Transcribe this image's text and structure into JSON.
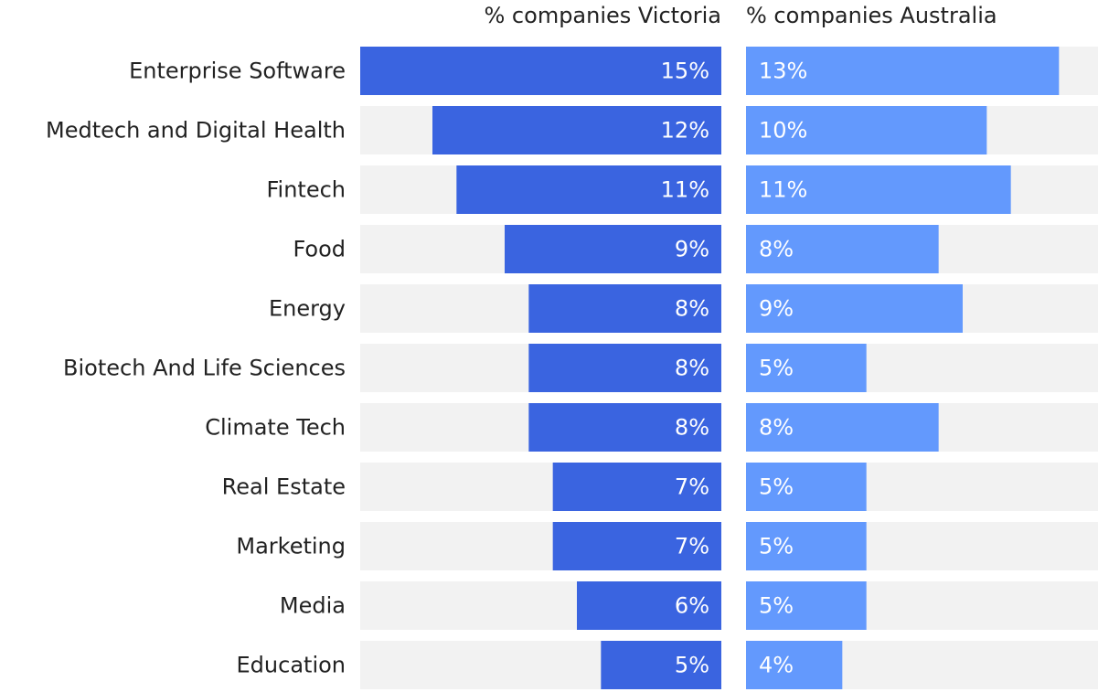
{
  "chart_data": {
    "type": "mirrored-bar",
    "categories": [
      "Enterprise Software",
      "Medtech and Digital Health",
      "Fintech",
      "Food",
      "Energy",
      "Biotech And Life Sciences",
      "Climate Tech",
      "Real Estate",
      "Marketing",
      "Media",
      "Education"
    ],
    "series": [
      {
        "name": "% companies Victoria",
        "color": "#3a64e0",
        "values": [
          15,
          12,
          11,
          9,
          8,
          8,
          8,
          7,
          7,
          6,
          5
        ],
        "value_labels": [
          "15%",
          "12%",
          "11%",
          "9%",
          "8%",
          "8%",
          "8%",
          "7%",
          "7%",
          "6%",
          "5%"
        ]
      },
      {
        "name": "% companies Australia",
        "color": "#6399fd",
        "values": [
          13,
          10,
          11,
          8,
          9,
          5,
          8,
          5,
          5,
          5,
          4
        ],
        "value_labels": [
          "13%",
          "10%",
          "11%",
          "8%",
          "9%",
          "5%",
          "8%",
          "5%",
          "5%",
          "5%",
          "4%"
        ]
      }
    ],
    "xlim": [
      0,
      15
    ]
  }
}
